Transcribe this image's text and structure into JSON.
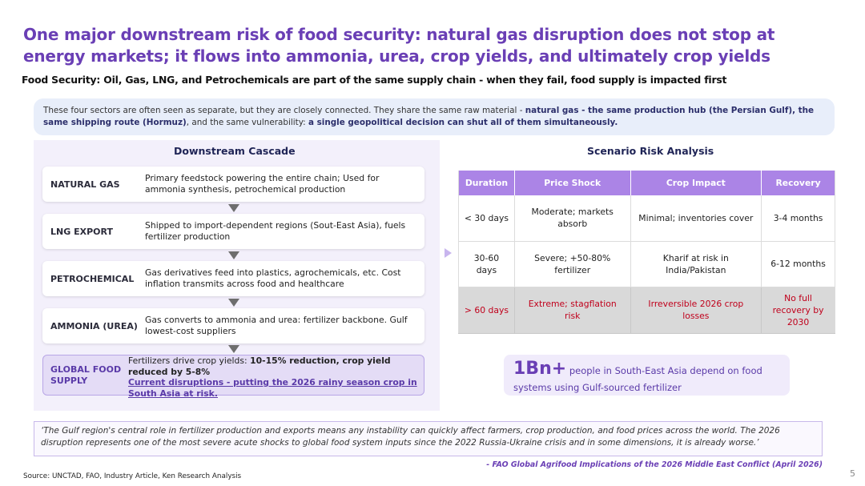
{
  "title": "One major downstream risk of food security: natural gas disruption does not stop at energy markets; it flows into ammonia, urea, crop yields, and ultimately crop yields",
  "subtitle": "Food Security: Oil, Gas, LNG, and Petrochemicals are part of the same supply chain - when they fail, food supply is impacted first",
  "intro": {
    "text_a": "These four sectors are often seen as separate, but they are closely connected. They share the same raw material - ",
    "bold_a": "natural gas - the same production hub (the Persian Gulf), the same shipping route (Hormuz)",
    "text_b": ", and the same vulnerability: ",
    "bold_b": "a single geopolitical decision can shut all of them simultaneously."
  },
  "cascade": {
    "heading": "Downstream  Cascade",
    "items": [
      {
        "label": "NATURAL GAS",
        "desc": "Primary feedstock powering the entire chain; Used for ammonia synthesis, petrochemical production"
      },
      {
        "label": "LNG EXPORT",
        "desc": "Shipped to import-dependent regions (Sout-East Asia), fuels fertilizer production"
      },
      {
        "label": "PETROCHEMICAL",
        "desc": "Gas derivatives feed into plastics, agrochemicals, etc. Cost inflation transmits across food and healthcare"
      },
      {
        "label": "AMMONIA (UREA)",
        "desc": "Gas converts to ammonia and urea: fertilizer backbone. Gulf lowest-cost suppliers"
      }
    ],
    "final": {
      "label": "GLOBAL FOOD SUPPLY",
      "desc_plain": "Fertilizers drive crop yields: ",
      "desc_bold": "10-15% reduction, crop yield reduced by 5-8%",
      "desc_underline": "Current disruptions - putting the 2026 rainy season crop in South Asia at risk."
    }
  },
  "scenario": {
    "heading": "Scenario Risk Analysis",
    "columns": [
      "Duration",
      "Price Shock",
      "Crop Impact",
      "Recovery"
    ],
    "rows": [
      [
        "< 30 days",
        "Moderate; markets absorb",
        "Minimal; inventories cover",
        "3-4 months"
      ],
      [
        "30-60 days",
        "Severe; +50-80% fertilizer",
        "Kharif at risk in India/Pakistan",
        "6-12 months"
      ],
      [
        "> 60 days",
        "Extreme; stagflation risk",
        "Irreversible 2026 crop losses",
        "No full recovery by 2030"
      ]
    ]
  },
  "stat": {
    "big": "1Bn+",
    "text": " people in South-East Asia depend on food systems using Gulf-sourced fertilizer"
  },
  "quote": "‘The Gulf region's central role in fertilizer production and exports means any instability can quickly affect farmers, crop production, and food prices across the world. The 2026 disruption represents one of the most severe acute shocks to global food system inputs since the 2022 Russia-Ukraine crisis and in some dimensions, it is already worse.’",
  "attribution": "- FAO Global Agrifood Implications of the 2026 Middle East Conflict (April 2026)",
  "source": "Source: UNCTAD, FAO, Industry Article, Ken Research Analysis",
  "page_number": "5",
  "colors": {
    "accent": "#6a3fb5",
    "table_header": "#ab84e6",
    "risk_red": "#c0001b"
  }
}
